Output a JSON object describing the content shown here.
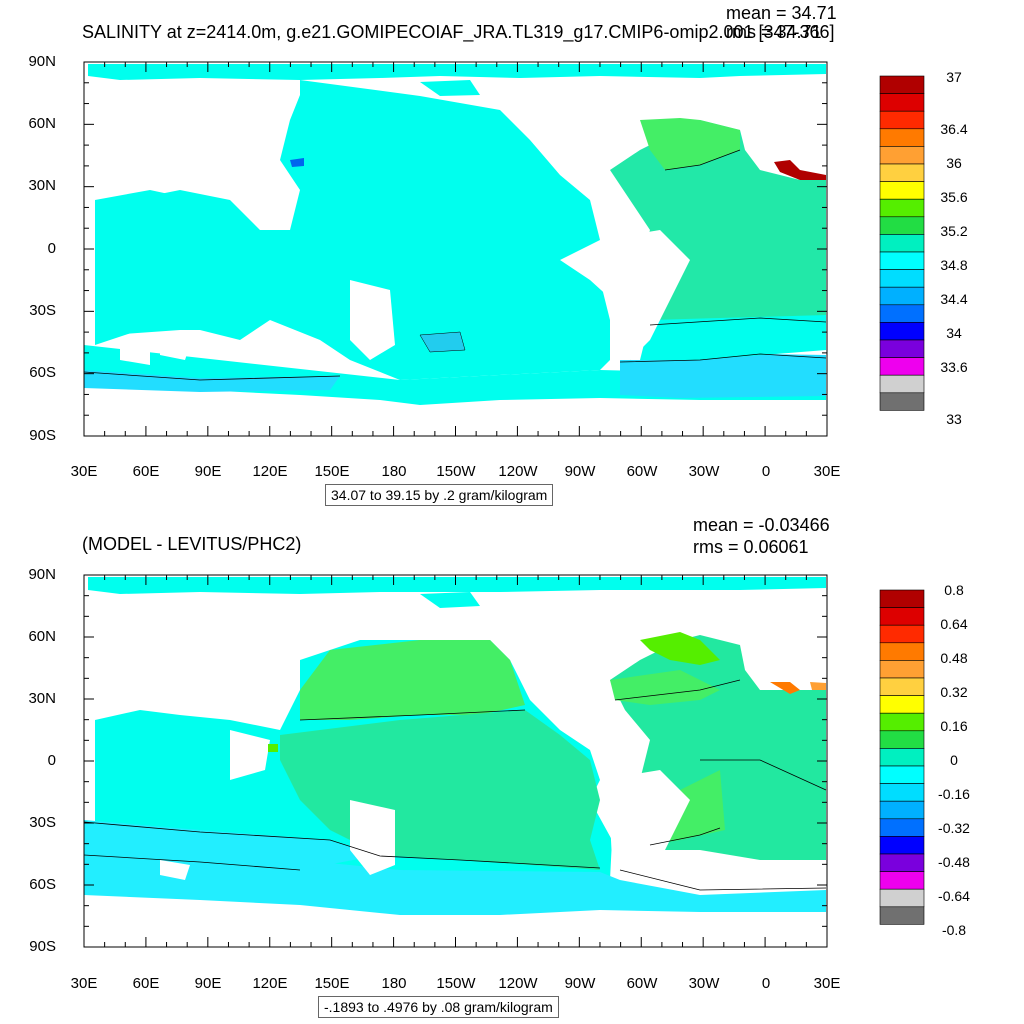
{
  "top_panel": {
    "title": "SALINITY at z=2414.0m, g.e21.GOMIPECOIAF_JRA.TL319_g17.CMIP6-omip2.001 [347-366]",
    "mean": "mean = 34.71",
    "rms": "rms = 34.71",
    "info": "34.07 to 39.15 by .2 gram/kilogram",
    "colorbar_labels": [
      "37",
      "36.4",
      "36",
      "35.6",
      "35.2",
      "34.8",
      "34.4",
      "34",
      "33.6",
      "33"
    ]
  },
  "bottom_panel": {
    "title": "(MODEL - LEVITUS/PHC2)",
    "mean": "mean = -0.03466",
    "rms": "rms = 0.06061",
    "info": "-.1893 to .4976 by .08 gram/kilogram",
    "colorbar_labels": [
      "0.8",
      "0.64",
      "0.48",
      "0.32",
      "0.16",
      "0",
      "-0.16",
      "-0.32",
      "-0.48",
      "-0.64",
      "-0.8"
    ]
  },
  "axes": {
    "lat_labels": [
      "90N",
      "60N",
      "30N",
      "0",
      "30S",
      "60S",
      "90S"
    ],
    "lon_labels": [
      "30E",
      "60E",
      "90E",
      "120E",
      "150E",
      "180",
      "150W",
      "120W",
      "90W",
      "60W",
      "30W",
      "0",
      "30E"
    ]
  },
  "colors": {
    "top_colorbar": [
      "#b00000",
      "#dd0000",
      "#ff2a00",
      "#ff7a00",
      "#ffa033",
      "#ffd040",
      "#ffff00",
      "#55ee00",
      "#22dd44",
      "#00f0c0",
      "#00ffff",
      "#00ddff",
      "#00b0ff",
      "#0070ff",
      "#0000ff",
      "#7a00dd",
      "#ee00ee",
      "#d0d0d0",
      "#707070"
    ],
    "bottom_colorbar": [
      "#b00000",
      "#dd0000",
      "#ff2a00",
      "#ff7a00",
      "#ffa033",
      "#ffd040",
      "#ffff00",
      "#55ee00",
      "#22dd44",
      "#00f0c0",
      "#00ffff",
      "#00ddff",
      "#00b0ff",
      "#0070ff",
      "#0000ff",
      "#7a00dd",
      "#ee00ee",
      "#d0d0d0",
      "#707070"
    ],
    "ocean_top": "#00ffee",
    "ocean_top_south": "#22ddff",
    "ocean_top_atlantic": "#22e8a8",
    "ocean_bottom": "#00ffee",
    "ocean_bottom_green": "#22e8a0",
    "ocean_bottom_south": "#22eeff"
  }
}
